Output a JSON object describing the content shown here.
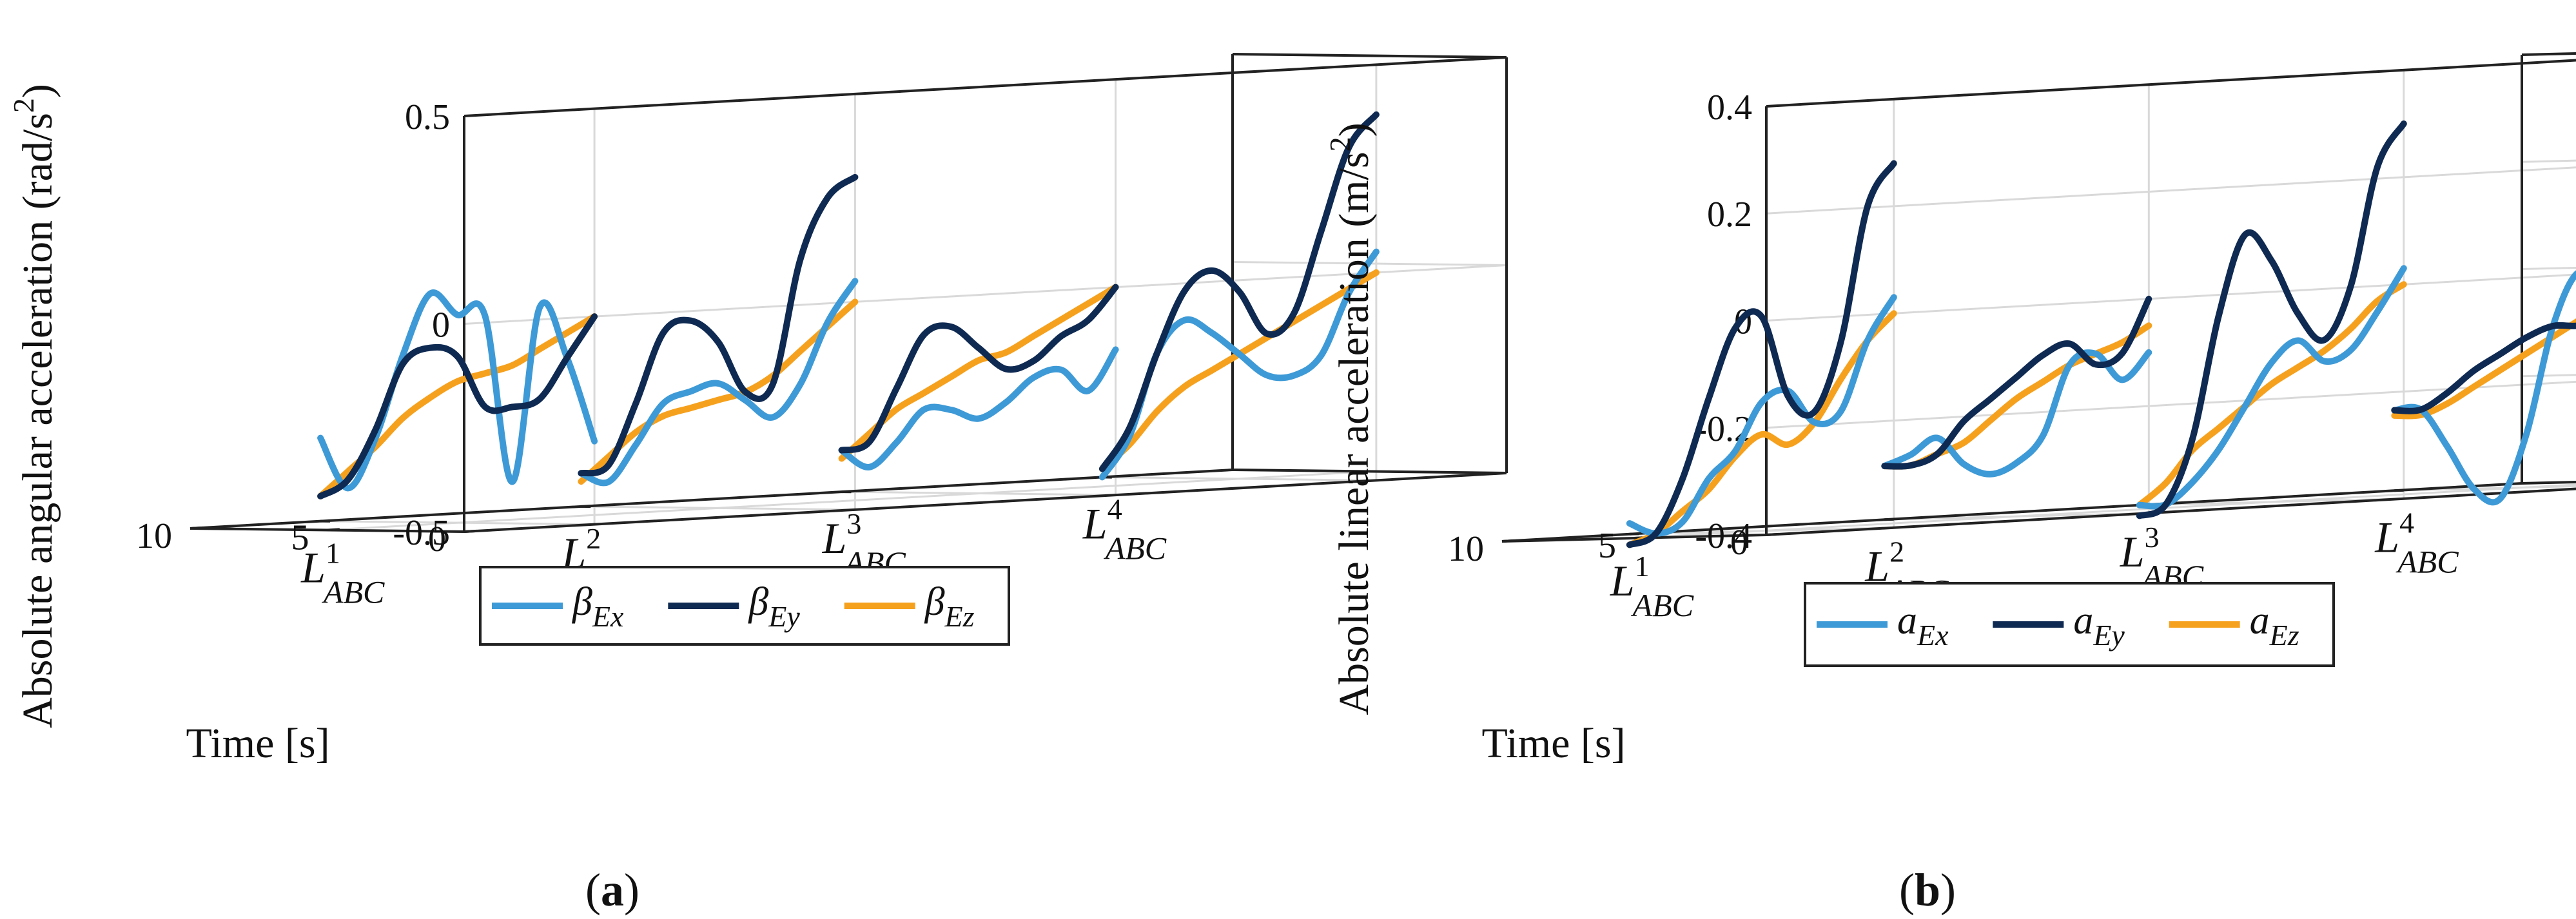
{
  "colors": {
    "Ex": "#3e9ad6",
    "Ey": "#0f2a52",
    "Ez": "#f6a11e",
    "grid": "#d9d9d9",
    "axis": "#222222"
  },
  "chart_data": [
    {
      "type": "line",
      "panel": "a",
      "caption": {
        "open": "(",
        "letter": "a",
        "close": ")"
      },
      "zlabel": "Absolute angular acceleration (rad/s",
      "zlabel_sup": "2",
      "zlabel_close": ")",
      "ylabel": "Time [s]",
      "zlim": [
        -0.5,
        0.5
      ],
      "ylim": [
        0,
        10
      ],
      "zticks": [
        {
          "v": 0.5,
          "label": "0.5"
        },
        {
          "v": 0,
          "label": "0"
        },
        {
          "v": -0.5,
          "label": "-0.5"
        }
      ],
      "yticks": [
        {
          "v": 10,
          "label": "10"
        },
        {
          "v": 5,
          "label": "5"
        },
        {
          "v": 0,
          "label": "0"
        }
      ],
      "categories": [
        {
          "base": "L",
          "sup": "1",
          "sub": "ABC"
        },
        {
          "base": "L",
          "sup": "2",
          "sub": "ABC"
        },
        {
          "base": "L",
          "sup": "3",
          "sub": "ABC"
        },
        {
          "base": "L",
          "sup": "4",
          "sub": "ABC"
        }
      ],
      "time": [
        0,
        1,
        2,
        3,
        4,
        5,
        6,
        7,
        8,
        9,
        10
      ],
      "legend": [
        {
          "key": "Ex",
          "sym": "β",
          "sub": "Ex"
        },
        {
          "key": "Ey",
          "sym": "β",
          "sub": "Ey"
        },
        {
          "key": "Ez",
          "sym": "β",
          "sub": "Ez"
        }
      ],
      "groups": [
        {
          "Ex": [
            -0.3,
            -0.1,
            0.02,
            -0.4,
            0.0,
            0.0,
            0.05,
            -0.1,
            -0.3,
            -0.42,
            -0.3
          ],
          "Ey": [
            0.0,
            -0.1,
            -0.2,
            -0.22,
            -0.22,
            -0.1,
            -0.08,
            -0.12,
            -0.28,
            -0.4,
            -0.44
          ],
          "Ez": [
            0.0,
            -0.04,
            -0.08,
            -0.12,
            -0.14,
            -0.16,
            -0.2,
            -0.25,
            -0.32,
            -0.38,
            -0.44
          ]
        },
        {
          "Ex": [
            0.05,
            -0.05,
            -0.2,
            -0.28,
            -0.24,
            -0.2,
            -0.22,
            -0.25,
            -0.35,
            -0.44,
            -0.42
          ],
          "Ey": [
            0.3,
            0.25,
            0.1,
            -0.2,
            -0.22,
            -0.1,
            -0.05,
            -0.08,
            -0.25,
            -0.4,
            -0.42
          ],
          "Ez": [
            0.0,
            -0.06,
            -0.12,
            -0.18,
            -0.22,
            -0.24,
            -0.26,
            -0.28,
            -0.32,
            -0.38,
            -0.44
          ]
        },
        {
          "Ex": [
            -0.15,
            -0.25,
            -0.2,
            -0.22,
            -0.28,
            -0.32,
            -0.3,
            -0.3,
            -0.38,
            -0.44,
            -0.4
          ],
          "Ey": [
            0.0,
            -0.08,
            -0.12,
            -0.18,
            -0.2,
            -0.15,
            -0.1,
            -0.12,
            -0.25,
            -0.38,
            -0.4
          ],
          "Ez": [
            0.0,
            -0.04,
            -0.08,
            -0.12,
            -0.16,
            -0.18,
            -0.22,
            -0.26,
            -0.3,
            -0.36,
            -0.42
          ]
        },
        {
          "Ex": [
            0.05,
            -0.05,
            -0.2,
            -0.25,
            -0.25,
            -0.2,
            -0.15,
            -0.12,
            -0.2,
            -0.4,
            -0.5
          ],
          "Ey": [
            0.38,
            0.3,
            0.1,
            -0.1,
            -0.15,
            -0.05,
            0.0,
            -0.05,
            -0.2,
            -0.38,
            -0.48
          ],
          "Ez": [
            0.0,
            -0.04,
            -0.08,
            -0.12,
            -0.16,
            -0.2,
            -0.24,
            -0.28,
            -0.34,
            -0.42,
            -0.48
          ]
        }
      ]
    },
    {
      "type": "line",
      "panel": "b",
      "caption": {
        "open": "(",
        "letter": "b",
        "close": ")"
      },
      "zlabel": "Absolute linear acceleration (m/s",
      "zlabel_sup": "2",
      "zlabel_close": ")",
      "ylabel": "Time [s]",
      "zlim": [
        -0.4,
        0.4
      ],
      "ylim": [
        0,
        10
      ],
      "zticks": [
        {
          "v": 0.4,
          "label": "0.4"
        },
        {
          "v": 0.2,
          "label": "0.2"
        },
        {
          "v": 0,
          "label": "0"
        },
        {
          "v": -0.2,
          "label": "-0.2"
        },
        {
          "v": -0.4,
          "label": "-0.4"
        }
      ],
      "yticks": [
        {
          "v": 10,
          "label": "10"
        },
        {
          "v": 5,
          "label": "5"
        },
        {
          "v": 0,
          "label": "0"
        }
      ],
      "categories": [
        {
          "base": "L",
          "sup": "1",
          "sub": "ABC"
        },
        {
          "base": "L",
          "sup": "2",
          "sub": "ABC"
        },
        {
          "base": "L",
          "sup": "3",
          "sub": "ABC"
        },
        {
          "base": "L",
          "sup": "4",
          "sub": "ABC"
        }
      ],
      "time": [
        0,
        1,
        2,
        3,
        4,
        5,
        6,
        7,
        8,
        9,
        10
      ],
      "legend": [
        {
          "key": "Ex",
          "sym": "a",
          "sub": "Ex"
        },
        {
          "key": "Ey",
          "sym": "a",
          "sub": "Ey"
        },
        {
          "key": "Ez",
          "sym": "a",
          "sub": "Ez"
        }
      ],
      "groups": [
        {
          "Ex": [
            0.03,
            -0.05,
            -0.18,
            -0.2,
            -0.14,
            -0.16,
            -0.25,
            -0.3,
            -0.38,
            -0.4,
            -0.38
          ],
          "Ey": [
            0.28,
            0.2,
            -0.05,
            -0.18,
            -0.15,
            0.0,
            -0.02,
            -0.15,
            -0.3,
            -0.4,
            -0.42
          ],
          "Ez": [
            0.0,
            -0.05,
            -0.12,
            -0.2,
            -0.24,
            -0.22,
            -0.26,
            -0.32,
            -0.36,
            -0.4,
            -0.42
          ]
        },
        {
          "Ex": [
            -0.1,
            -0.15,
            -0.1,
            -0.12,
            -0.25,
            -0.3,
            -0.32,
            -0.3,
            -0.25,
            -0.28,
            -0.3
          ],
          "Ey": [
            0.0,
            -0.1,
            -0.12,
            -0.08,
            -0.1,
            -0.14,
            -0.18,
            -0.22,
            -0.28,
            -0.3,
            -0.3
          ],
          "Ez": [
            -0.05,
            -0.08,
            -0.1,
            -0.12,
            -0.15,
            -0.18,
            -0.22,
            -0.26,
            -0.28,
            -0.3,
            -0.3
          ]
        },
        {
          "Ex": [
            0.03,
            -0.05,
            -0.12,
            -0.14,
            -0.1,
            -0.14,
            -0.22,
            -0.3,
            -0.36,
            -0.4,
            -0.4
          ],
          "Ey": [
            0.3,
            0.22,
            0.0,
            -0.1,
            -0.05,
            0.05,
            0.1,
            -0.05,
            -0.28,
            -0.4,
            -0.42
          ],
          "Ez": [
            0.0,
            -0.03,
            -0.08,
            -0.12,
            -0.15,
            -0.18,
            -0.22,
            -0.26,
            -0.3,
            -0.36,
            -0.4
          ]
        },
        {
          "Ex": [
            -0.25,
            -0.15,
            -0.05,
            0.0,
            -0.1,
            -0.3,
            -0.42,
            -0.4,
            -0.32,
            -0.25,
            -0.25
          ],
          "Ey": [
            0.0,
            -0.05,
            -0.08,
            -0.1,
            -0.1,
            -0.12,
            -0.15,
            -0.18,
            -0.22,
            -0.25,
            -0.25
          ],
          "Ez": [
            0.0,
            -0.03,
            -0.06,
            -0.09,
            -0.12,
            -0.15,
            -0.18,
            -0.21,
            -0.24,
            -0.26,
            -0.26
          ]
        }
      ]
    }
  ]
}
